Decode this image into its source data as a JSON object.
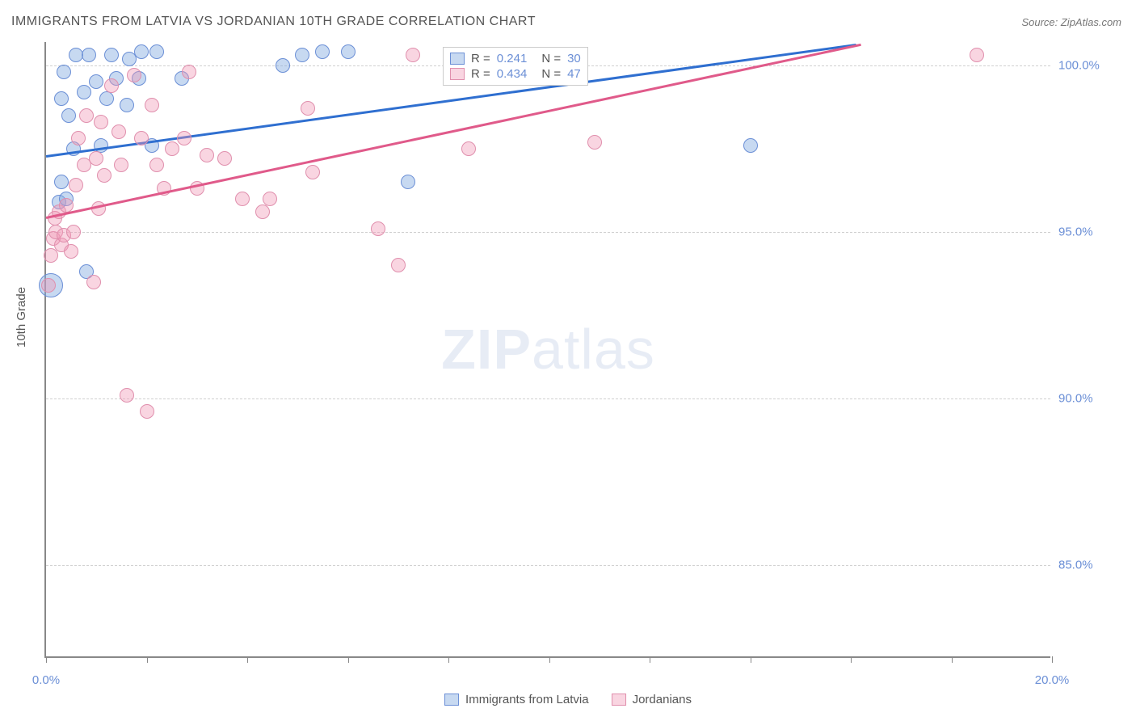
{
  "title": "IMMIGRANTS FROM LATVIA VS JORDANIAN 10TH GRADE CORRELATION CHART",
  "source": "Source: ZipAtlas.com",
  "ylabel": "10th Grade",
  "watermark_bold": "ZIP",
  "watermark_light": "atlas",
  "chart": {
    "type": "scatter",
    "xlim": [
      0,
      20
    ],
    "ylim": [
      82.2,
      100.7
    ],
    "xtick_positions": [
      0,
      2,
      4,
      6,
      8,
      10,
      12,
      14,
      16,
      18,
      20
    ],
    "xtick_labels": {
      "0": "0.0%",
      "20": "20.0%"
    },
    "ytick_positions": [
      85,
      90,
      95,
      100
    ],
    "ytick_labels": [
      "85.0%",
      "90.0%",
      "95.0%",
      "100.0%"
    ],
    "grid_color": "#d0d0d0",
    "axis_color": "#888888",
    "label_color": "#6b8fd6",
    "series": [
      {
        "name": "Immigrants from Latvia",
        "fill_color": "rgba(130,170,225,0.45)",
        "stroke_color": "#6b8fd6",
        "line_color": "#2f6fd0",
        "marker_radius": 9,
        "stats": {
          "R": "0.241",
          "N": "30"
        },
        "trend": {
          "x1": 0,
          "y1": 97.3,
          "x2": 16.1,
          "y2": 100.65
        },
        "points": [
          {
            "x": 0.1,
            "y": 93.4,
            "r": 15
          },
          {
            "x": 0.25,
            "y": 95.9
          },
          {
            "x": 0.3,
            "y": 96.5
          },
          {
            "x": 0.3,
            "y": 99.0
          },
          {
            "x": 0.35,
            "y": 99.8
          },
          {
            "x": 0.4,
            "y": 96.0
          },
          {
            "x": 0.45,
            "y": 98.5
          },
          {
            "x": 0.55,
            "y": 97.5
          },
          {
            "x": 0.6,
            "y": 100.3
          },
          {
            "x": 0.75,
            "y": 99.2
          },
          {
            "x": 0.8,
            "y": 93.8
          },
          {
            "x": 0.85,
            "y": 100.3
          },
          {
            "x": 1.0,
            "y": 99.5
          },
          {
            "x": 1.1,
            "y": 97.6
          },
          {
            "x": 1.2,
            "y": 99.0
          },
          {
            "x": 1.3,
            "y": 100.3
          },
          {
            "x": 1.4,
            "y": 99.6
          },
          {
            "x": 1.6,
            "y": 98.8
          },
          {
            "x": 1.65,
            "y": 100.2
          },
          {
            "x": 1.85,
            "y": 99.6
          },
          {
            "x": 1.9,
            "y": 100.4
          },
          {
            "x": 2.1,
            "y": 97.6
          },
          {
            "x": 2.2,
            "y": 100.4
          },
          {
            "x": 2.7,
            "y": 99.6
          },
          {
            "x": 4.7,
            "y": 100.0
          },
          {
            "x": 5.1,
            "y": 100.3
          },
          {
            "x": 5.5,
            "y": 100.4
          },
          {
            "x": 6.0,
            "y": 100.4
          },
          {
            "x": 7.2,
            "y": 96.5
          },
          {
            "x": 14.0,
            "y": 97.6
          }
        ]
      },
      {
        "name": "Jordanians",
        "fill_color": "rgba(240,150,180,0.40)",
        "stroke_color": "#e08fad",
        "line_color": "#e05a8a",
        "marker_radius": 9,
        "stats": {
          "R": "0.434",
          "N": "47"
        },
        "trend": {
          "x1": 0,
          "y1": 95.45,
          "x2": 16.2,
          "y2": 100.65
        },
        "points": [
          {
            "x": 0.05,
            "y": 93.4
          },
          {
            "x": 0.1,
            "y": 94.3
          },
          {
            "x": 0.15,
            "y": 94.8
          },
          {
            "x": 0.18,
            "y": 95.4
          },
          {
            "x": 0.2,
            "y": 95.0
          },
          {
            "x": 0.25,
            "y": 95.6
          },
          {
            "x": 0.3,
            "y": 94.6
          },
          {
            "x": 0.35,
            "y": 94.9
          },
          {
            "x": 0.4,
            "y": 95.8
          },
          {
            "x": 0.5,
            "y": 94.4
          },
          {
            "x": 0.55,
            "y": 95.0
          },
          {
            "x": 0.6,
            "y": 96.4
          },
          {
            "x": 0.65,
            "y": 97.8
          },
          {
            "x": 0.75,
            "y": 97.0
          },
          {
            "x": 0.8,
            "y": 98.5
          },
          {
            "x": 0.95,
            "y": 93.5
          },
          {
            "x": 1.0,
            "y": 97.2
          },
          {
            "x": 1.05,
            "y": 95.7
          },
          {
            "x": 1.1,
            "y": 98.3
          },
          {
            "x": 1.15,
            "y": 96.7
          },
          {
            "x": 1.3,
            "y": 99.4
          },
          {
            "x": 1.45,
            "y": 98.0
          },
          {
            "x": 1.5,
            "y": 97.0
          },
          {
            "x": 1.6,
            "y": 90.1
          },
          {
            "x": 1.75,
            "y": 99.7
          },
          {
            "x": 1.9,
            "y": 97.8
          },
          {
            "x": 2.0,
            "y": 89.6
          },
          {
            "x": 2.1,
            "y": 98.8
          },
          {
            "x": 2.2,
            "y": 97.0
          },
          {
            "x": 2.35,
            "y": 96.3
          },
          {
            "x": 2.5,
            "y": 97.5
          },
          {
            "x": 2.75,
            "y": 97.8
          },
          {
            "x": 2.85,
            "y": 99.8
          },
          {
            "x": 3.0,
            "y": 96.3
          },
          {
            "x": 3.2,
            "y": 97.3
          },
          {
            "x": 3.55,
            "y": 97.2
          },
          {
            "x": 3.9,
            "y": 96.0
          },
          {
            "x": 4.3,
            "y": 95.6
          },
          {
            "x": 4.45,
            "y": 96.0
          },
          {
            "x": 5.2,
            "y": 98.7
          },
          {
            "x": 5.3,
            "y": 96.8
          },
          {
            "x": 6.6,
            "y": 95.1
          },
          {
            "x": 7.0,
            "y": 94.0
          },
          {
            "x": 7.3,
            "y": 100.3
          },
          {
            "x": 8.4,
            "y": 97.5
          },
          {
            "x": 10.9,
            "y": 97.7
          },
          {
            "x": 18.5,
            "y": 100.3
          }
        ]
      }
    ]
  },
  "legend_top": {
    "rows": [
      {
        "R_label": "R =",
        "R": "0.241",
        "N_label": "N =",
        "N": "30"
      },
      {
        "R_label": "R =",
        "R": "0.434",
        "N_label": "N =",
        "N": "47"
      }
    ]
  },
  "legend_bottom": {
    "items": [
      "Immigrants from Latvia",
      "Jordanians"
    ]
  }
}
